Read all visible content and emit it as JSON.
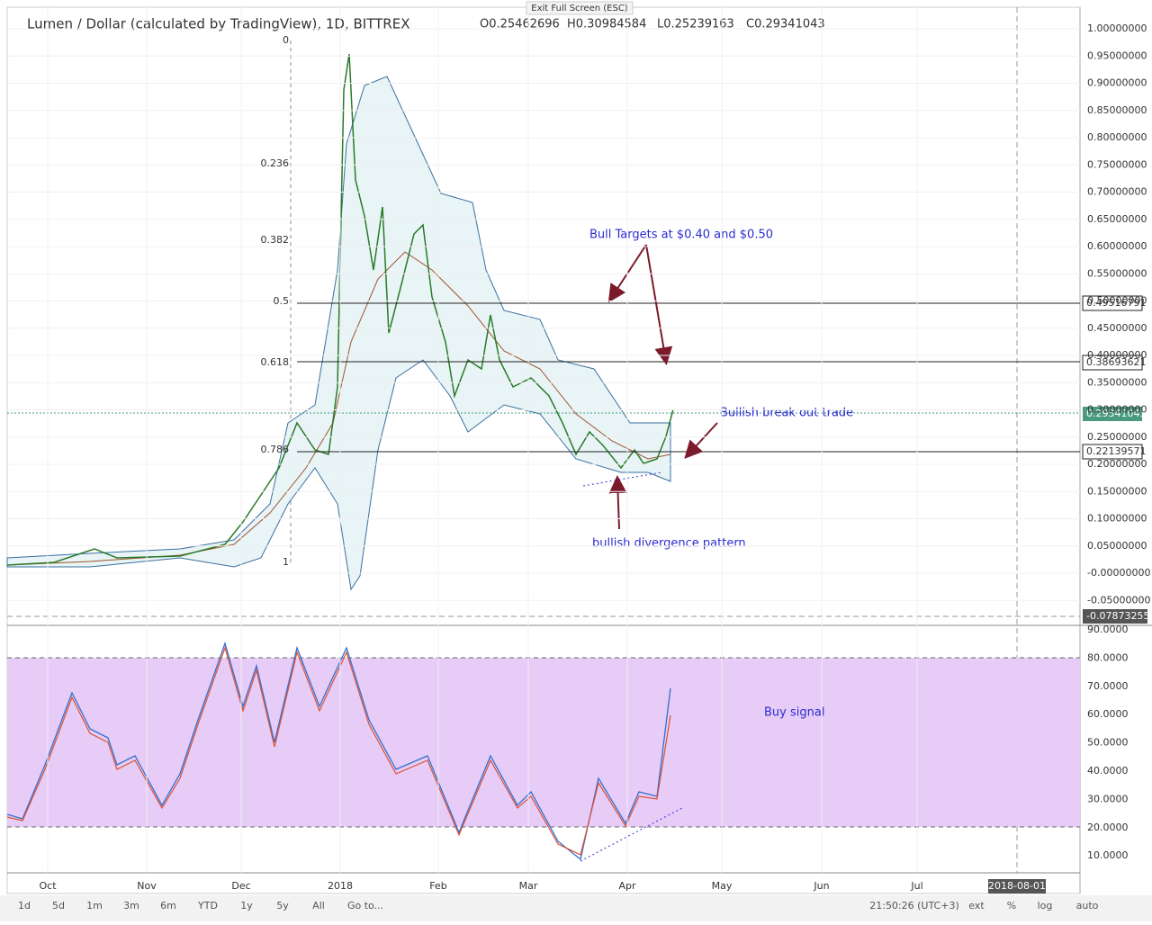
{
  "header": {
    "symbol": "Lumen / Dollar (calculated by TradingView), 1D, BITTREX",
    "open": "O0.25462696",
    "high": "H0.30984584",
    "low": "L0.25239163",
    "close": "C0.29341043",
    "exit": "Exit Full Screen (ESC)"
  },
  "price_axis": [
    "1.00000000",
    "0.95000000",
    "0.90000000",
    "0.85000000",
    "0.80000000",
    "0.75000000",
    "0.70000000",
    "0.65000000",
    "0.60000000",
    "0.55000000",
    "0.50000000",
    "0.45000000",
    "0.40000000",
    "0.35000000",
    "0.30000000",
    "0.25000000",
    "0.20000000",
    "0.15000000",
    "0.10000000",
    "0.05000000",
    "-0.00000000",
    "-0.05000000"
  ],
  "price_tags": {
    "level_high": "0.49516791",
    "level_mid": "0.38693621",
    "current": "0.29341043",
    "level_low": "0.22139571",
    "cursor": "-0.07873255"
  },
  "fib_labels": [
    "0",
    "0.236",
    "0.382",
    "0.5",
    "0.618",
    "0.786",
    "1"
  ],
  "annotations": {
    "targets": "Bull Targets at $0.40 and $0.50",
    "breakout": "Bullish break out trade",
    "divergence": "bullish divergence pattern",
    "buy": "Buy signal"
  },
  "rsi_axis": [
    "90.0000",
    "80.0000",
    "70.0000",
    "60.0000",
    "50.0000",
    "40.0000",
    "30.0000",
    "20.0000",
    "10.0000"
  ],
  "time_axis": [
    "Oct",
    "Nov",
    "Dec",
    "2018",
    "Feb",
    "Mar",
    "Apr",
    "May",
    "Jun",
    "Jul"
  ],
  "time_cursor": "2018-08-01",
  "toolbar": {
    "ranges": [
      "1d",
      "5d",
      "1m",
      "3m",
      "6m",
      "YTD",
      "1y",
      "5y",
      "All",
      "Go to..."
    ],
    "clock": "21:50:26 (UTC+3)",
    "options": [
      "ext",
      "%",
      "log",
      "auto"
    ]
  }
}
